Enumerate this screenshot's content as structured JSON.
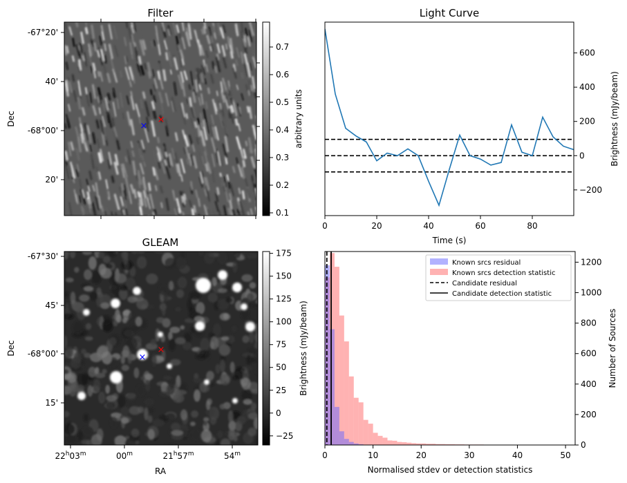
{
  "chart_data": [
    {
      "type": "image",
      "title": "Filter",
      "xlabel": "",
      "ylabel": "Dec",
      "ytick_labels": [
        "-67°20'",
        "40'",
        "-68°00'",
        "20'"
      ],
      "colorbar": {
        "label": "arbitrary units",
        "range": [
          0.09,
          0.79
        ],
        "ticks": [
          0.1,
          0.2,
          0.3,
          0.4,
          0.5,
          0.6,
          0.7
        ],
        "tick_labels": [
          "0.1",
          "0.2",
          "0.3",
          "0.4",
          "0.5",
          "0.6",
          "0.7"
        ]
      },
      "markers": [
        {
          "symbol": "x",
          "color": "#0000ff"
        },
        {
          "symbol": "x",
          "color": "#ff0000"
        }
      ]
    },
    {
      "type": "line",
      "title": "Light Curve",
      "xlabel": "Time (s)",
      "ylabel": "Brightness (mJy/beam)",
      "xlim": [
        0,
        96
      ],
      "ylim": [
        -350,
        780
      ],
      "xticks": [
        0,
        20,
        40,
        60,
        80
      ],
      "yticks": [
        -200,
        0,
        200,
        400,
        600
      ],
      "x": [
        0,
        4,
        8,
        12,
        16,
        20,
        24,
        28,
        32,
        36,
        40,
        44,
        48,
        52,
        56,
        60,
        64,
        68,
        72,
        76,
        80,
        84,
        88,
        92,
        96
      ],
      "series": [
        {
          "values": [
            740,
            360,
            160,
            115,
            80,
            -30,
            15,
            0,
            40,
            0,
            -150,
            -290,
            -80,
            120,
            0,
            -20,
            -55,
            -40,
            180,
            20,
            0,
            225,
            110,
            55,
            35
          ],
          "color": "#1f77b4"
        }
      ],
      "hlines": [
        {
          "y": 95,
          "style": "dashed",
          "color": "#000000"
        },
        {
          "y": 0,
          "style": "dashed",
          "color": "#000000"
        },
        {
          "y": -95,
          "style": "dashed",
          "color": "#000000"
        }
      ]
    },
    {
      "type": "image",
      "title": "GLEAM",
      "xlabel": "RA",
      "ylabel": "Dec",
      "ytick_labels": [
        "-67°30'",
        "45'",
        "-68°00'",
        "15'"
      ],
      "xtick_labels": [
        {
          "main": "22",
          "h": "h",
          "minutes": "03",
          "m": "m"
        },
        {
          "main": "00",
          "h": "",
          "minutes": "",
          "m": "m"
        },
        {
          "main": "21",
          "h": "h",
          "minutes": "57",
          "m": "m"
        },
        {
          "main": "54",
          "h": "",
          "minutes": "",
          "m": "m"
        }
      ],
      "colorbar": {
        "label": "Brightness (mJy/beam)",
        "range": [
          -35,
          177
        ],
        "ticks": [
          -25,
          0,
          25,
          50,
          75,
          100,
          125,
          150,
          175
        ],
        "tick_labels": [
          "−25",
          "0",
          "25",
          "50",
          "75",
          "100",
          "125",
          "150",
          "175"
        ]
      },
      "markers": [
        {
          "symbol": "x",
          "color": "#0000ff"
        },
        {
          "symbol": "x",
          "color": "#ff0000"
        }
      ]
    },
    {
      "type": "histogram",
      "xlabel": "Normalised stdev or detection statistics",
      "ylabel": "Number of Sources",
      "xlim": [
        0,
        52
      ],
      "ylim": [
        0,
        1270
      ],
      "xticks": [
        0,
        10,
        20,
        30,
        40,
        50
      ],
      "yticks": [
        0,
        200,
        400,
        600,
        800,
        1000,
        1200
      ],
      "bin_width": 1,
      "series": [
        {
          "name": "Known srcs residual",
          "color": "#6666ff",
          "bin_starts": [
            0,
            1,
            2,
            3,
            4,
            5,
            6,
            7,
            8
          ],
          "counts": [
            1180,
            760,
            250,
            90,
            40,
            20,
            10,
            5,
            2
          ]
        },
        {
          "name": "Known srcs detection statistic",
          "color": "#ff6666",
          "bin_starts": [
            0,
            1,
            2,
            3,
            4,
            5,
            6,
            7,
            8,
            9,
            10,
            11,
            12,
            13,
            14,
            15,
            16,
            17,
            18,
            19,
            20,
            21,
            22,
            23,
            24,
            25,
            26,
            27,
            28,
            29,
            30,
            31,
            32,
            33,
            34,
            35,
            36,
            37,
            38,
            39,
            40,
            41,
            42,
            43,
            44,
            45,
            46,
            47,
            48,
            49
          ],
          "counts": [
            1100,
            1260,
            1170,
            850,
            680,
            450,
            310,
            280,
            165,
            140,
            80,
            60,
            48,
            30,
            28,
            20,
            18,
            15,
            12,
            10,
            10,
            8,
            8,
            6,
            6,
            5,
            5,
            4,
            4,
            3,
            3,
            3,
            3,
            2,
            2,
            2,
            2,
            2,
            2,
            2,
            2,
            2,
            2,
            2,
            2,
            2,
            2,
            2,
            2,
            2
          ]
        }
      ],
      "vlines": [
        {
          "name": "Candidate residual",
          "x": 0.4,
          "style": "dashed",
          "color": "#000000"
        },
        {
          "name": "Candidate detection statistic",
          "x": 1.3,
          "style": "solid",
          "color": "#000000"
        }
      ],
      "legend": "top-right"
    }
  ]
}
